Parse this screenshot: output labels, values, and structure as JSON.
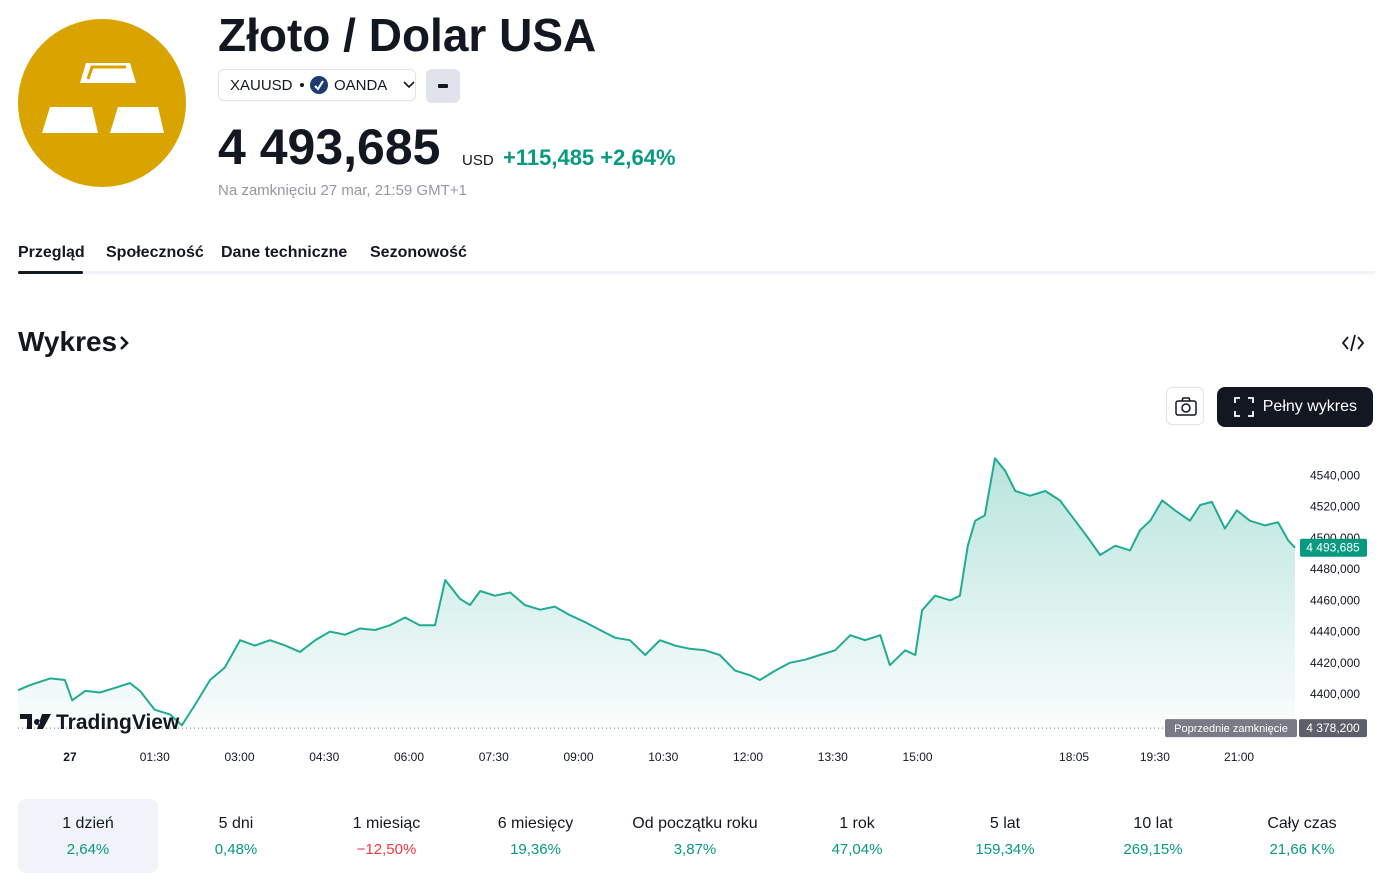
{
  "header": {
    "title": "Złoto / Dolar USA",
    "symbol": "XAUUSD",
    "exchange": "OANDA",
    "price": "4 493,685",
    "currency": "USD",
    "change": "+115,485",
    "change_pct": "+2,64%",
    "note": "Na zamknięciu 27 mar, 21:59 GMT+1"
  },
  "tabs": [
    "Przegląd",
    "Społeczność",
    "Dane techniczne",
    "Sezonowość"
  ],
  "section_title": "Wykres",
  "full_chart_button": "Pełny wykres",
  "chart_data": {
    "type": "line",
    "watermark": "TradingView",
    "x": [
      -0.92,
      -0.71,
      -0.35,
      -0.09,
      0.04,
      0.27,
      0.53,
      0.8,
      1.06,
      1.24,
      1.5,
      1.77,
      1.98,
      2.21,
      2.48,
      2.74,
      3.01,
      3.27,
      3.54,
      3.81,
      4.07,
      4.34,
      4.6,
      4.87,
      5.13,
      5.4,
      5.66,
      5.93,
      6.19,
      6.46,
      6.64,
      6.9,
      7.08,
      7.26,
      7.52,
      7.79,
      8.05,
      8.32,
      8.58,
      8.85,
      9.12,
      9.38,
      9.65,
      9.91,
      10.18,
      10.44,
      10.71,
      10.97,
      11.24,
      11.5,
      11.77,
      12.04,
      12.21,
      12.48,
      12.74,
      13.01,
      13.27,
      13.54,
      13.81,
      14.07,
      14.34,
      14.51,
      14.78,
      14.96,
      15.08,
      15.31,
      15.58,
      15.75,
      15.89,
      16.02,
      16.19,
      16.37,
      16.55,
      16.73,
      16.99,
      17.26,
      17.52,
      17.79,
      18.05,
      18.23,
      18.5,
      18.76,
      18.94,
      19.12,
      19.33,
      19.56,
      19.82,
      20.0,
      20.21,
      20.44,
      20.65,
      20.88,
      21.15,
      21.38,
      21.56,
      21.68
    ],
    "series": [
      {
        "color": "#22ab94",
        "values": [
          4402.5,
          4405.7,
          4410,
          4409,
          4396,
          4402,
          4401,
          4404,
          4407,
          4402,
          4390,
          4387,
          4380,
          4393,
          4409,
          4417,
          4434.5,
          4431,
          4434.5,
          4431,
          4427,
          4434.5,
          4440,
          4438,
          4442,
          4441,
          4444,
          4449,
          4444,
          4444,
          4473,
          4461,
          4457,
          4466,
          4463,
          4465,
          4457,
          4454,
          4456,
          4450.5,
          4446,
          4441,
          4436,
          4434.5,
          4425,
          4434.5,
          4431,
          4429,
          4428,
          4425,
          4415,
          4412,
          4409,
          4415,
          4420,
          4422,
          4425,
          4428,
          4437.7,
          4434.5,
          4437.7,
          4418.5,
          4428,
          4425,
          4453.7,
          4463,
          4460,
          4463,
          4495,
          4511,
          4514.4,
          4551,
          4543,
          4530,
          4527,
          4530,
          4524,
          4511,
          4498.4,
          4489,
          4495,
          4492,
          4505,
          4511,
          4524,
          4517.6,
          4511,
          4521,
          4523,
          4506,
          4517.6,
          4511,
          4508,
          4510,
          4498.4,
          4493.685
        ]
      }
    ],
    "xlim": [
      -0.92,
      21.68
    ],
    "xticks": [
      {
        "value": 0,
        "label": "27"
      },
      {
        "value": 1.5,
        "label": "01:30"
      },
      {
        "value": 3,
        "label": "03:00"
      },
      {
        "value": 4.5,
        "label": "04:30"
      },
      {
        "value": 6,
        "label": "06:00"
      },
      {
        "value": 7.5,
        "label": "07:30"
      },
      {
        "value": 9,
        "label": "09:00"
      },
      {
        "value": 10.5,
        "label": "10:30"
      },
      {
        "value": 12,
        "label": "12:00"
      },
      {
        "value": 13.5,
        "label": "13:30"
      },
      {
        "value": 15,
        "label": "15:00"
      },
      {
        "value": 17.77,
        "label": "18:05"
      },
      {
        "value": 19.2,
        "label": "19:30"
      },
      {
        "value": 20.69,
        "label": "21:00"
      }
    ],
    "ylim": [
      4377,
      4562
    ],
    "yticks": [
      {
        "value": 4400,
        "label": "4400,000"
      },
      {
        "value": 4420,
        "label": "4420,000"
      },
      {
        "value": 4440,
        "label": "4440,000"
      },
      {
        "value": 4460,
        "label": "4460,000"
      },
      {
        "value": 4480,
        "label": "4480,000"
      },
      {
        "value": 4500,
        "label": "4500,000"
      },
      {
        "value": 4520,
        "label": "4520,000"
      },
      {
        "value": 4540,
        "label": "4540,000"
      }
    ],
    "previous_close": {
      "value": 4378.2,
      "label": "4 378,200",
      "text": "Poprzednie zamknięcie"
    }
  },
  "ranges": [
    {
      "label": "1 dzień",
      "value": "2,64%",
      "color": "#089981"
    },
    {
      "label": "5 dni",
      "value": "0,48%",
      "color": "#089981"
    },
    {
      "label": "1 miesiąc",
      "value": "−12,50%",
      "color": "#f23645"
    },
    {
      "label": "6 miesięcy",
      "value": "19,36%",
      "color": "#089981"
    },
    {
      "label": "Od początku roku",
      "value": "3,87%",
      "color": "#089981"
    },
    {
      "label": "1 rok",
      "value": "47,04%",
      "color": "#089981"
    },
    {
      "label": "5 lat",
      "value": "159,34%",
      "color": "#089981"
    },
    {
      "label": "10 lat",
      "value": "269,15%",
      "color": "#089981"
    },
    {
      "label": "Cały czas",
      "value": "21,66 K%",
      "color": "#089981"
    }
  ]
}
